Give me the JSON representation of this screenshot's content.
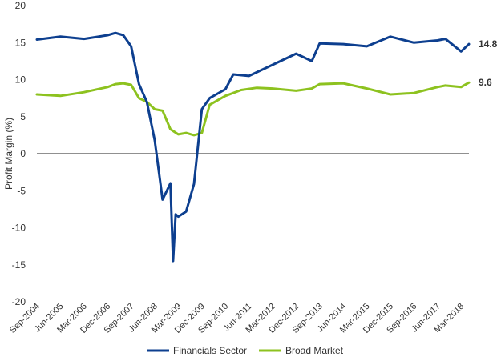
{
  "chart_data": {
    "type": "line",
    "ylabel": "Profit Margin (%)",
    "xlabel": "",
    "ylim": [
      -20,
      20
    ],
    "yticks": [
      "20",
      "15",
      "10",
      "5",
      "0",
      "-5",
      "-10",
      "-15",
      "-20"
    ],
    "x_tick_labels": [
      "Sep-2004",
      "Jun-2005",
      "Mar-2006",
      "Dec-2006",
      "Sep-2007",
      "Jun-2008",
      "Mar-2009",
      "Dec-2009",
      "Sep-2010",
      "Jun-2011",
      "Mar-2012",
      "Dec-2012",
      "Sep-2013",
      "Jun-2014",
      "Mar-2015",
      "Dec-2015",
      "Sep-2016",
      "Jun-2017",
      "Mar-2018"
    ],
    "grid": {
      "horizontal": false,
      "vertical": false
    },
    "legend_position": "bottom",
    "series": [
      {
        "name": "Financials Sector",
        "color": "#0d3f8f",
        "end_label": "14.8",
        "x": [
          "Sep-2004",
          "Jun-2005",
          "Mar-2006",
          "Dec-2006",
          "Mar-2007",
          "Jun-2007",
          "Sep-2007",
          "Dec-2007",
          "Mar-2008",
          "Jun-2008",
          "Sep-2008",
          "Dec-2008",
          "Jan-2009",
          "Feb-2009",
          "Mar-2009",
          "Jun-2009",
          "Sep-2009",
          "Dec-2009",
          "Mar-2010",
          "Sep-2010",
          "Dec-2010",
          "Jun-2011",
          "Dec-2011",
          "Mar-2012",
          "Dec-2012",
          "Jun-2013",
          "Sep-2013",
          "Jun-2014",
          "Mar-2015",
          "Dec-2015",
          "Sep-2016",
          "Jun-2017",
          "Sep-2017",
          "Mar-2018",
          "Jun-2018"
        ],
        "y": [
          15.4,
          15.8,
          15.5,
          16.0,
          16.3,
          16.0,
          14.5,
          9.4,
          7.0,
          1.8,
          -6.2,
          -4.0,
          -14.5,
          -8.2,
          -8.5,
          -7.8,
          -4.1,
          6.0,
          7.5,
          8.7,
          10.7,
          10.5,
          11.5,
          12.0,
          13.5,
          12.5,
          14.9,
          14.8,
          14.5,
          15.8,
          15.0,
          15.3,
          15.5,
          13.8,
          14.8
        ]
      },
      {
        "name": "Broad Market",
        "color": "#8dc21f",
        "end_label": "9.6",
        "x": [
          "Sep-2004",
          "Jun-2005",
          "Mar-2006",
          "Dec-2006",
          "Mar-2007",
          "Jun-2007",
          "Sep-2007",
          "Dec-2007",
          "Mar-2008",
          "Jun-2008",
          "Sep-2008",
          "Dec-2008",
          "Mar-2009",
          "Jun-2009",
          "Sep-2009",
          "Dec-2009",
          "Mar-2010",
          "Sep-2010",
          "Mar-2011",
          "Sep-2011",
          "Mar-2012",
          "Dec-2012",
          "Jun-2013",
          "Sep-2013",
          "Jun-2014",
          "Mar-2015",
          "Dec-2015",
          "Sep-2016",
          "Jun-2017",
          "Sep-2017",
          "Mar-2018",
          "Jun-2018"
        ],
        "y": [
          8.0,
          7.8,
          8.3,
          9.0,
          9.4,
          9.5,
          9.3,
          7.5,
          7.0,
          6.0,
          5.8,
          3.3,
          2.6,
          2.8,
          2.5,
          2.8,
          6.6,
          7.8,
          8.6,
          8.9,
          8.8,
          8.5,
          8.8,
          9.4,
          9.5,
          8.8,
          8.0,
          8.2,
          9.0,
          9.2,
          9.0,
          9.6
        ]
      }
    ]
  }
}
